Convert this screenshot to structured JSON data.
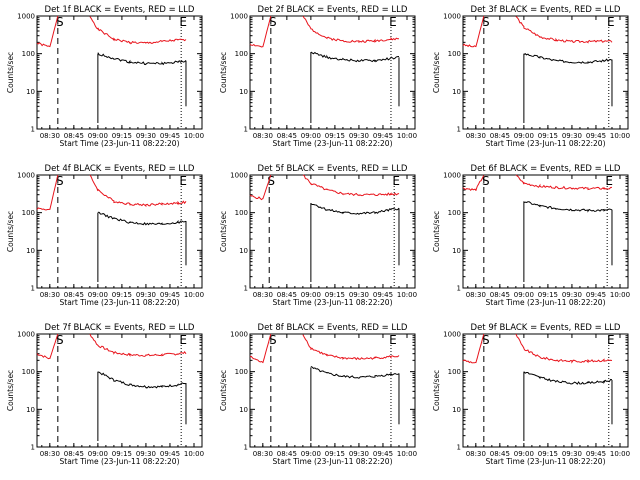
{
  "figure": {
    "type": "multi-panel count-rate plot",
    "start_time_label": "Start Time (23-Jun-11 08:22:20)",
    "ylabel": "Counts/sec",
    "x_tick_labels": [
      "08:30",
      "08:45",
      "09:00",
      "09:15",
      "09:30",
      "09:45",
      "10:00"
    ],
    "y_tick_labels": [
      "1",
      "10",
      "100",
      "1000"
    ],
    "markers": {
      "S": "S",
      "E": "E"
    },
    "colors": {
      "events": "#000000",
      "lld": "#e8141c",
      "axes": "#000000"
    }
  },
  "chart_data": [
    {
      "type": "line",
      "title": "Det 1f BLACK = Events, RED = LLD",
      "xlabel": "Start Time (23-Jun-11 08:22:20)",
      "ylabel": "Counts/sec",
      "ylog": true,
      "ylim": [
        1,
        1000
      ],
      "x": [
        "08:22",
        "08:30",
        "08:35",
        "08:45",
        "08:55",
        "09:00",
        "09:10",
        "09:20",
        "09:30",
        "09:40",
        "09:50",
        "09:55"
      ],
      "series": [
        {
          "name": "LLD",
          "values": [
            190,
            150,
            1000,
            null,
            1000,
            450,
            240,
            200,
            190,
            210,
            230,
            230
          ]
        },
        {
          "name": "Events",
          "values": [
            null,
            null,
            null,
            null,
            null,
            100,
            75,
            60,
            55,
            55,
            60,
            65
          ]
        }
      ],
      "markers": {
        "S": "08:35",
        "E": "09:52"
      }
    },
    {
      "type": "line",
      "title": "Det 2f BLACK = Events, RED = LLD",
      "xlabel": "Start Time (23-Jun-11 08:22:20)",
      "ylabel": "Counts/sec",
      "ylog": true,
      "ylim": [
        1,
        1000
      ],
      "x": [
        "08:22",
        "08:30",
        "08:35",
        "08:45",
        "08:55",
        "09:00",
        "09:10",
        "09:20",
        "09:30",
        "09:40",
        "09:50",
        "09:55"
      ],
      "series": [
        {
          "name": "LLD",
          "values": [
            180,
            150,
            1000,
            null,
            1000,
            450,
            260,
            220,
            210,
            220,
            240,
            250
          ]
        },
        {
          "name": "Events",
          "values": [
            null,
            null,
            null,
            null,
            null,
            110,
            80,
            70,
            65,
            65,
            75,
            80
          ]
        }
      ],
      "markers": {
        "S": "08:35",
        "E": "09:50"
      }
    },
    {
      "type": "line",
      "title": "Det 3f BLACK = Events, RED = LLD",
      "xlabel": "Start Time (23-Jun-11 08:22:20)",
      "ylabel": "Counts/sec",
      "ylog": true,
      "ylim": [
        1,
        1000
      ],
      "x": [
        "08:22",
        "08:30",
        "08:35",
        "08:45",
        "08:55",
        "09:00",
        "09:10",
        "09:20",
        "09:30",
        "09:40",
        "09:50",
        "09:55"
      ],
      "series": [
        {
          "name": "LLD",
          "values": [
            170,
            150,
            1000,
            null,
            1000,
            500,
            280,
            230,
            210,
            210,
            215,
            210
          ]
        },
        {
          "name": "Events",
          "values": [
            null,
            null,
            null,
            null,
            null,
            100,
            80,
            65,
            60,
            60,
            65,
            70
          ]
        }
      ],
      "markers": {
        "S": "08:35",
        "E": "09:53"
      }
    },
    {
      "type": "line",
      "title": "Det 4f BLACK = Events, RED = LLD",
      "xlabel": "Start Time (23-Jun-11 08:22:20)",
      "ylabel": "Counts/sec",
      "ylog": true,
      "ylim": [
        1,
        1000
      ],
      "x": [
        "08:22",
        "08:30",
        "08:35",
        "08:45",
        "08:55",
        "09:00",
        "09:10",
        "09:20",
        "09:30",
        "09:40",
        "09:50",
        "09:55"
      ],
      "series": [
        {
          "name": "LLD",
          "values": [
            130,
            120,
            1000,
            null,
            1000,
            400,
            200,
            170,
            160,
            170,
            180,
            190
          ]
        },
        {
          "name": "Events",
          "values": [
            null,
            null,
            null,
            null,
            null,
            100,
            70,
            55,
            50,
            50,
            55,
            60
          ]
        }
      ],
      "markers": {
        "S": "08:35",
        "E": "09:52"
      }
    },
    {
      "type": "line",
      "title": "Det 5f BLACK = Events, RED = LLD",
      "xlabel": "Start Time (23-Jun-11 08:22:20)",
      "ylabel": "Counts/sec",
      "ylog": true,
      "ylim": [
        1,
        1000
      ],
      "x": [
        "08:22",
        "08:30",
        "08:35",
        "08:45",
        "08:55",
        "09:00",
        "09:10",
        "09:20",
        "09:30",
        "09:40",
        "09:50",
        "09:55"
      ],
      "series": [
        {
          "name": "LLD",
          "values": [
            280,
            230,
            1000,
            null,
            1000,
            600,
            400,
            320,
            300,
            300,
            310,
            320
          ]
        },
        {
          "name": "Events",
          "values": [
            null,
            null,
            null,
            null,
            null,
            180,
            120,
            100,
            95,
            100,
            120,
            130
          ]
        }
      ],
      "markers": {
        "S": "08:34",
        "E": "09:52"
      }
    },
    {
      "type": "line",
      "title": "Det 6f BLACK = Events, RED = LLD",
      "xlabel": "Start Time (23-Jun-11 08:22:20)",
      "ylabel": "Counts/sec",
      "ylog": true,
      "ylim": [
        1,
        1000
      ],
      "x": [
        "08:22",
        "08:30",
        "08:35",
        "08:45",
        "08:55",
        "09:00",
        "09:10",
        "09:20",
        "09:30",
        "09:40",
        "09:50",
        "09:55"
      ],
      "series": [
        {
          "name": "LLD",
          "values": [
            450,
            400,
            1000,
            null,
            1000,
            600,
            500,
            470,
            450,
            440,
            440,
            440
          ]
        },
        {
          "name": "Events",
          "values": [
            null,
            null,
            null,
            null,
            null,
            200,
            150,
            130,
            120,
            115,
            115,
            120
          ]
        }
      ],
      "markers": {
        "S": "08:35",
        "E": "09:52"
      }
    },
    {
      "type": "line",
      "title": "Det 7f BLACK = Events, RED = LLD",
      "xlabel": "Start Time (23-Jun-11 08:22:20)",
      "ylabel": "Counts/sec",
      "ylog": true,
      "ylim": [
        1,
        1000
      ],
      "x": [
        "08:22",
        "08:30",
        "08:35",
        "08:45",
        "08:55",
        "09:00",
        "09:10",
        "09:20",
        "09:30",
        "09:40",
        "09:50",
        "09:55"
      ],
      "series": [
        {
          "name": "LLD",
          "values": [
            300,
            220,
            1000,
            null,
            1000,
            500,
            320,
            280,
            270,
            280,
            300,
            320
          ]
        },
        {
          "name": "Events",
          "values": [
            null,
            null,
            null,
            null,
            null,
            100,
            60,
            45,
            40,
            40,
            45,
            50
          ]
        }
      ],
      "markers": {
        "S": "08:35",
        "E": "09:52"
      }
    },
    {
      "type": "line",
      "title": "Det 8f BLACK = Events, RED = LLD",
      "xlabel": "Start Time (23-Jun-11 08:22:20)",
      "ylabel": "Counts/sec",
      "ylog": true,
      "ylim": [
        1,
        1000
      ],
      "x": [
        "08:22",
        "08:30",
        "08:35",
        "08:45",
        "08:55",
        "09:00",
        "09:10",
        "09:20",
        "09:30",
        "09:40",
        "09:50",
        "09:55"
      ],
      "series": [
        {
          "name": "LLD",
          "values": [
            250,
            170,
            1000,
            null,
            1000,
            420,
            270,
            230,
            220,
            230,
            250,
            260
          ]
        },
        {
          "name": "Events",
          "values": [
            null,
            null,
            null,
            null,
            null,
            130,
            90,
            75,
            70,
            75,
            85,
            90
          ]
        }
      ],
      "markers": {
        "S": "08:35",
        "E": "09:50"
      }
    },
    {
      "type": "line",
      "title": "Det 9f BLACK = Events, RED = LLD",
      "xlabel": "Start Time (23-Jun-11 08:22:20)",
      "ylabel": "Counts/sec",
      "ylog": true,
      "ylim": [
        1,
        1000
      ],
      "x": [
        "08:22",
        "08:30",
        "08:35",
        "08:45",
        "08:55",
        "09:00",
        "09:10",
        "09:20",
        "09:30",
        "09:40",
        "09:50",
        "09:55"
      ],
      "series": [
        {
          "name": "LLD",
          "values": [
            200,
            170,
            1000,
            null,
            1000,
            400,
            240,
            200,
            190,
            190,
            200,
            200
          ]
        },
        {
          "name": "Events",
          "values": [
            null,
            null,
            null,
            null,
            null,
            100,
            70,
            55,
            50,
            50,
            55,
            60
          ]
        }
      ],
      "markers": {
        "S": "08:35",
        "E": "09:53"
      }
    }
  ]
}
